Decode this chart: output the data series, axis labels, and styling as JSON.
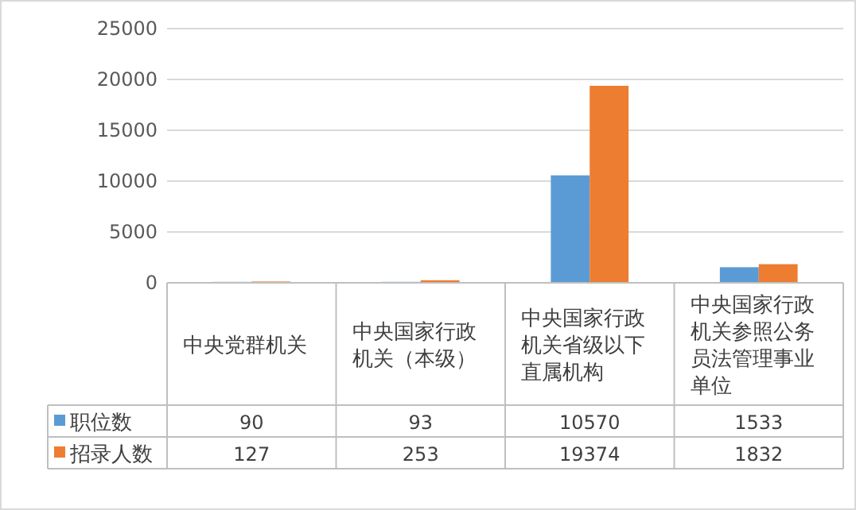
{
  "chart_data": {
    "type": "bar",
    "categories": [
      "中央党群机关",
      "中央国家行政机关（本级）",
      "中央国家行政机关省级以下直属机构",
      "中央国家行政机关参照公务员法管理事业单位"
    ],
    "series": [
      {
        "name": "职位数",
        "color": "#5b9bd5",
        "values": [
          90,
          93,
          10570,
          1533
        ]
      },
      {
        "name": "招录人数",
        "color": "#ed7d31",
        "values": [
          127,
          253,
          19374,
          1832
        ]
      }
    ],
    "ylim": [
      0,
      25000
    ],
    "yticks": [
      0,
      5000,
      10000,
      15000,
      20000,
      25000
    ],
    "grid": "y",
    "data_labels": true,
    "legend": "bottom"
  }
}
